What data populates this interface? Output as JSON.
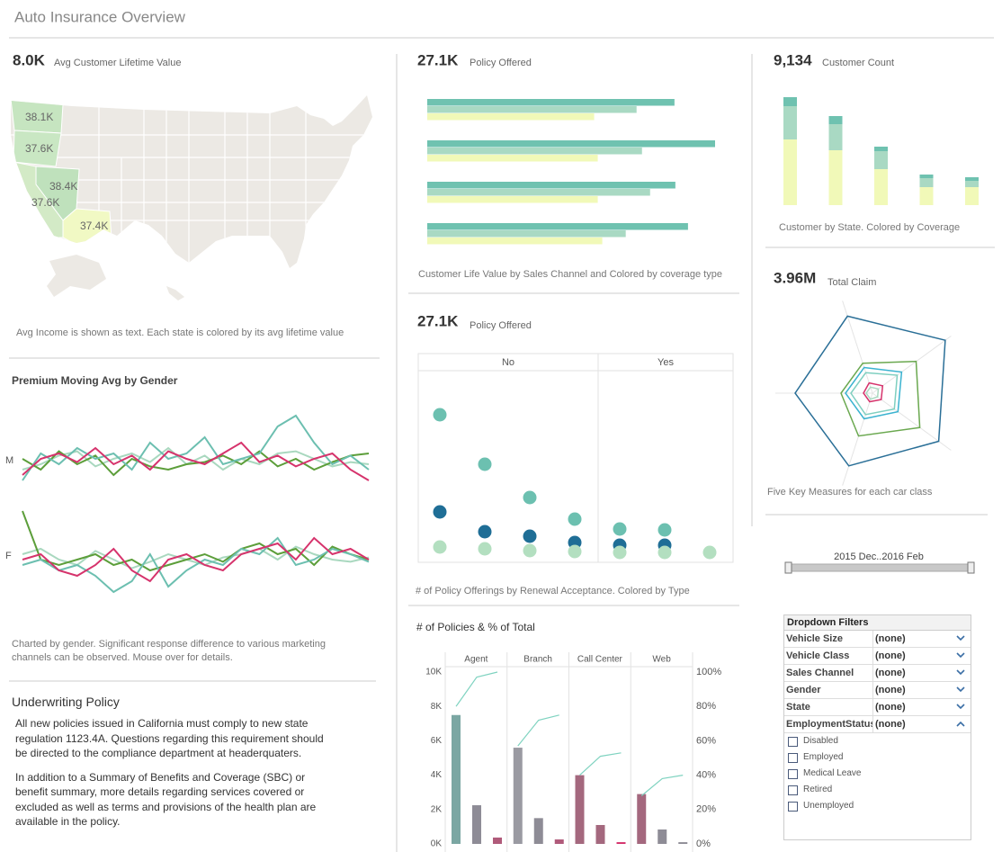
{
  "title": "Auto Insurance Overview",
  "kpis": [
    {
      "value": "8.0K",
      "label": "Avg Customer Lifetime Value"
    },
    {
      "value": "27.1K",
      "label": "Policy Offered"
    },
    {
      "value": "9,134",
      "label": "Customer Count"
    },
    {
      "value": "27.1K",
      "label": "Policy Offered"
    },
    {
      "value": "3.96M",
      "label": "Total Claim"
    }
  ],
  "map": {
    "regions": [
      {
        "label": "38.1K",
        "color": "#c6e5c0"
      },
      {
        "label": "37.6K",
        "color": "#c9e7c3"
      },
      {
        "label": "38.4K",
        "color": "#bfe1bc"
      },
      {
        "label": "37.6K",
        "color": "#d3eac6"
      },
      {
        "label": "37.4K",
        "color": "#f1f9c4"
      }
    ],
    "caption": "Avg Income is shown as text. Each state is colored by its avg lifetime value"
  },
  "chart_data": [
    {
      "type": "barh",
      "series": [
        {
          "color": "#6fc2b0",
          "values": [
            274,
            319,
            275,
            289
          ]
        },
        {
          "color": "#a9d9c3",
          "values": [
            232,
            238,
            247,
            220
          ]
        },
        {
          "color": "#f1f9b8",
          "values": [
            185,
            189,
            189,
            194
          ]
        }
      ],
      "caption": "Customer Life Value by Sales Channel and Colored by coverage type"
    },
    {
      "type": "stackedbar",
      "series": [
        {
          "color": "#f1f9b8",
          "values": [
            73,
            61,
            40,
            20,
            20
          ]
        },
        {
          "color": "#a9d9c3",
          "values": [
            37,
            29,
            20,
            10,
            7
          ]
        },
        {
          "color": "#6fc2b0",
          "values": [
            10,
            9,
            5,
            4,
            4
          ]
        }
      ],
      "caption": "Customer by State. Colored by Coverage"
    },
    {
      "type": "line",
      "title": "Premium Moving Avg by Gender",
      "panels": [
        {
          "label": "M",
          "series": [
            {
              "color": "#a9d8bf",
              "values": [
                45,
                50,
                58,
                62,
                48,
                55,
                60,
                52,
                65,
                50,
                58,
                45,
                55,
                50,
                60,
                62,
                55,
                48,
                52,
                50
              ]
            },
            {
              "color": "#5c9e3a",
              "values": [
                55,
                45,
                62,
                50,
                58,
                40,
                55,
                48,
                45,
                50,
                52,
                58,
                50,
                62,
                48,
                55,
                45,
                52,
                58,
                60
              ]
            },
            {
              "color": "#6cbfb0",
              "values": [
                35,
                60,
                50,
                65,
                55,
                60,
                45,
                70,
                55,
                60,
                75,
                50,
                55,
                60,
                85,
                95,
                70,
                50,
                58,
                45
              ]
            },
            {
              "color": "#d6336c",
              "values": [
                40,
                55,
                60,
                52,
                65,
                50,
                58,
                45,
                62,
                55,
                50,
                60,
                70,
                52,
                58,
                48,
                55,
                60,
                45,
                35
              ]
            }
          ]
        },
        {
          "label": "F",
          "series": [
            {
              "color": "#a9d8bf",
              "values": [
                55,
                60,
                50,
                45,
                58,
                50,
                42,
                48,
                55,
                50,
                45,
                52,
                55,
                60,
                50,
                62,
                55,
                50,
                48,
                52
              ]
            },
            {
              "color": "#5c9e3a",
              "values": [
                95,
                50,
                45,
                50,
                55,
                45,
                50,
                40,
                45,
                50,
                55,
                48,
                60,
                65,
                55,
                60,
                45,
                62,
                55,
                50
              ]
            },
            {
              "color": "#6cbfb0",
              "values": [
                45,
                50,
                40,
                45,
                35,
                20,
                30,
                55,
                25,
                40,
                50,
                45,
                60,
                55,
                70,
                45,
                50,
                60,
                55,
                48
              ]
            },
            {
              "color": "#d6336c",
              "values": [
                50,
                55,
                40,
                35,
                45,
                60,
                40,
                30,
                50,
                55,
                45,
                40,
                55,
                60,
                65,
                50,
                70,
                55,
                60,
                50
              ]
            }
          ]
        }
      ],
      "caption": "Charted by gender. Significant response difference to various marketing channels can be observed. Mouse over for details."
    },
    {
      "type": "scatter",
      "facets": [
        {
          "label": "No",
          "series": [
            {
              "color": "#6cc0b0",
              "values": [
                164,
                109,
                72,
                48
              ]
            },
            {
              "color": "#1f6e96",
              "values": [
                56,
                34,
                29,
                22
              ]
            },
            {
              "color": "#b3dfc0",
              "values": [
                17,
                15,
                13,
                12
              ]
            }
          ]
        },
        {
          "label": "Yes",
          "series": [
            {
              "color": "#6cc0b0",
              "values": [
                37,
                36,
                null
              ]
            },
            {
              "color": "#1f6e96",
              "values": [
                19,
                19,
                null
              ]
            },
            {
              "color": "#b3dfc0",
              "values": [
                11,
                11,
                11
              ]
            }
          ]
        }
      ],
      "caption": "# of Policy Offerings by Renewal Acceptance. Colored by Type"
    },
    {
      "type": "radar",
      "series": [
        {
          "color": "#2a6f97",
          "values": [
            90,
            100,
            91,
            85,
            86
          ]
        },
        {
          "color": "#6aa84f",
          "values": [
            35,
            60,
            65,
            50,
            35
          ]
        },
        {
          "color": "#3bb3d0",
          "values": [
            30,
            40,
            35,
            30,
            30
          ]
        },
        {
          "color": "#7fcfc0",
          "values": [
            24,
            34,
            30,
            25,
            24
          ]
        },
        {
          "color": "#d6336c",
          "values": [
            12,
            14,
            12,
            10,
            10
          ]
        },
        {
          "color": "#a9d8bf",
          "values": [
            7,
            8,
            7,
            7,
            7
          ]
        }
      ],
      "caption": "Five Key Measures for each car class"
    },
    {
      "type": "combo",
      "title": "# of Policies & % of Total",
      "line_color": "#7fd3c0",
      "facets": [
        {
          "label": "Agent",
          "values": [
            7500,
            2250,
            370
          ],
          "colors": [
            "#7ba7a3",
            "#8e8c96",
            "#b05a7a"
          ],
          "line": [
            80,
            97,
            100
          ]
        },
        {
          "label": "Branch",
          "values": [
            5600,
            1500,
            260
          ],
          "colors": [
            "#9a9aa2",
            "#8e8c96",
            "#b05a7a"
          ],
          "line": [
            57,
            72,
            75
          ]
        },
        {
          "label": "Call Center",
          "values": [
            4000,
            1100,
            100
          ],
          "colors": [
            "#a4687e",
            "#a4687e",
            "#d42f6a"
          ],
          "line": [
            40,
            51,
            53
          ]
        },
        {
          "label": "Web",
          "values": [
            2900,
            840,
            100
          ],
          "colors": [
            "#a4687e",
            "#8e8c96",
            "#8e8c96"
          ],
          "line": [
            28,
            38,
            40
          ]
        }
      ],
      "ylim": [
        0,
        10000
      ],
      "yticks": [
        {
          "value": 0,
          "label": "0K"
        },
        {
          "value": 2000,
          "label": "2K"
        },
        {
          "value": 4000,
          "label": "4K"
        },
        {
          "value": 6000,
          "label": "6K"
        },
        {
          "value": 8000,
          "label": "8K"
        },
        {
          "value": 10000,
          "label": "10K"
        }
      ],
      "y2lim": [
        0,
        100
      ],
      "y2ticks": [
        {
          "value": 0,
          "label": "0%"
        },
        {
          "value": 20,
          "label": "20%"
        },
        {
          "value": 40,
          "label": "40%"
        },
        {
          "value": 60,
          "label": "60%"
        },
        {
          "value": 80,
          "label": "80%"
        },
        {
          "value": 100,
          "label": "100%"
        }
      ]
    }
  ],
  "underwriting": {
    "title": "Underwriting Policy",
    "paragraphs": [
      "All new policies issued in California must comply to new state regulation 1123.4A. Questions regarding this requirement should be directed to the compliance department at headerquaters.",
      "In addition to a Summary of Benefits and Coverage (SBC) or benefit summary, more details regarding services covered or excluded as well as terms and provisions of the health plan are available in the policy."
    ]
  },
  "date_range": "2015 Dec..2016 Feb",
  "filters": {
    "title": "Dropdown Filters",
    "dropdowns": [
      {
        "label": "Vehicle Size",
        "value": "(none)",
        "expanded": false
      },
      {
        "label": "Vehicle Class",
        "value": "(none)",
        "expanded": false
      },
      {
        "label": "Sales Channel",
        "value": "(none)",
        "expanded": false
      },
      {
        "label": "Gender",
        "value": "(none)",
        "expanded": false
      },
      {
        "label": "State",
        "value": "(none)",
        "expanded": false
      },
      {
        "label": "EmploymentStatus",
        "value": "(none)",
        "expanded": true
      }
    ],
    "options": [
      "Disabled",
      "Employed",
      "Medical Leave",
      "Retired",
      "Unemployed"
    ]
  }
}
